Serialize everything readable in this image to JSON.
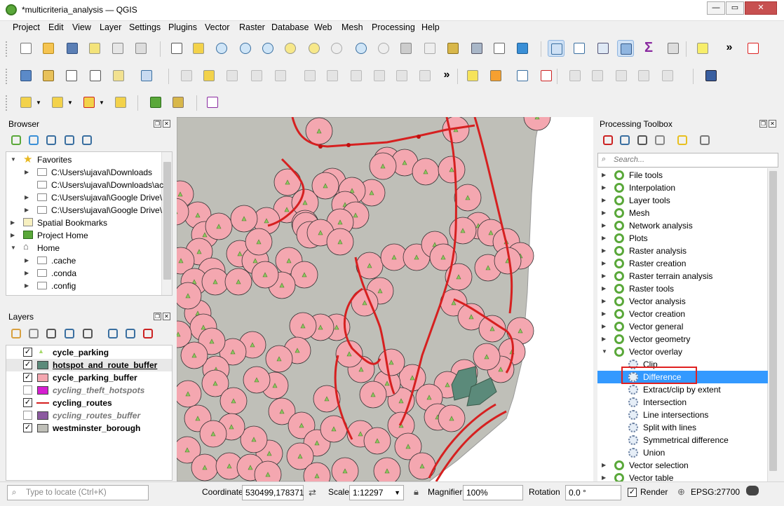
{
  "window": {
    "title": "*multicriteria_analysis — QGIS"
  },
  "menu": [
    "Project",
    "Edit",
    "View",
    "Layer",
    "Settings",
    "Plugins",
    "Vector",
    "Raster",
    "Database",
    "Web",
    "Mesh",
    "Processing",
    "Help"
  ],
  "browser": {
    "title": "Browser",
    "items": [
      {
        "label": "Favorites",
        "level": 0,
        "expanded": true,
        "icon": "star-icon"
      },
      {
        "label": "C:\\Users\\ujaval\\Downloads",
        "level": 1,
        "icon": "folder-icon"
      },
      {
        "label": "C:\\Users\\ujaval\\Downloads\\ac",
        "level": 1,
        "icon": "folder-icon"
      },
      {
        "label": "C:\\Users\\ujaval\\Google Drive\\",
        "level": 1,
        "icon": "folder-icon"
      },
      {
        "label": "C:\\Users\\ujaval\\Google Drive\\",
        "level": 1,
        "icon": "folder-icon"
      },
      {
        "label": "Spatial Bookmarks",
        "level": 0,
        "icon": "bookmark-icon"
      },
      {
        "label": "Project Home",
        "level": 0,
        "icon": "project-home-icon"
      },
      {
        "label": "Home",
        "level": 0,
        "expanded": true,
        "icon": "home-icon"
      },
      {
        "label": ".cache",
        "level": 1,
        "icon": "folder-icon"
      },
      {
        "label": ".conda",
        "level": 1,
        "icon": "folder-icon"
      },
      {
        "label": ".config",
        "level": 1,
        "icon": "folder-icon"
      }
    ]
  },
  "layers": {
    "title": "Layers",
    "items": [
      {
        "name": "cycle_parking",
        "checked": true,
        "color": "#a6d96a",
        "kind": "point"
      },
      {
        "name": "hotspot_and_route_buffer",
        "checked": true,
        "color": "#5b8a7a",
        "kind": "fill",
        "underline": true
      },
      {
        "name": "cycle_parking_buffer",
        "checked": true,
        "color": "#f4a7b0",
        "kind": "fill"
      },
      {
        "name": "cycling_theft_hotspots",
        "checked": false,
        "color": "#d61ed0",
        "kind": "fill"
      },
      {
        "name": "cycling_routes",
        "checked": true,
        "color": "#d62020",
        "kind": "line"
      },
      {
        "name": "cycling_routes_buffer",
        "checked": false,
        "color": "#8c5aa0",
        "kind": "fill"
      },
      {
        "name": "westminster_borough",
        "checked": true,
        "color": "#bfbfb8",
        "kind": "fill"
      }
    ]
  },
  "processing": {
    "title": "Processing Toolbox",
    "search_placeholder": "Search...",
    "groups": [
      {
        "label": "File tools"
      },
      {
        "label": "Interpolation"
      },
      {
        "label": "Layer tools"
      },
      {
        "label": "Mesh"
      },
      {
        "label": "Network analysis"
      },
      {
        "label": "Plots"
      },
      {
        "label": "Raster analysis"
      },
      {
        "label": "Raster creation"
      },
      {
        "label": "Raster terrain analysis"
      },
      {
        "label": "Raster tools"
      },
      {
        "label": "Vector analysis"
      },
      {
        "label": "Vector creation"
      },
      {
        "label": "Vector general"
      },
      {
        "label": "Vector geometry"
      },
      {
        "label": "Vector overlay",
        "expanded": true
      }
    ],
    "overlay_algorithms": [
      {
        "label": "Clip"
      },
      {
        "label": "Difference",
        "selected": true
      },
      {
        "label": "Extract/clip by extent"
      },
      {
        "label": "Intersection"
      },
      {
        "label": "Line intersections"
      },
      {
        "label": "Split with lines"
      },
      {
        "label": "Symmetrical difference"
      },
      {
        "label": "Union"
      }
    ],
    "groups_after": [
      {
        "label": "Vector selection"
      },
      {
        "label": "Vector table"
      }
    ]
  },
  "status": {
    "locator_placeholder": "Type to locate (Ctrl+K)",
    "coordinate_label": "Coordinate",
    "coordinate_value": "530499,178371",
    "scale_label": "Scale",
    "scale_value": "1:12297",
    "magnifier_label": "Magnifier",
    "magnifier_value": "100%",
    "rotation_label": "Rotation",
    "rotation_value": "0.0 °",
    "render_label": "Render",
    "render_checked": true,
    "crs_label": "EPSG:27700"
  },
  "colors": {
    "accent": "#3399ff",
    "selection_outline": "#e02020",
    "borough_fill": "#bfbfb8",
    "buffer_fill": "#f4a7b0",
    "route_line": "#d62020",
    "hotspot_fill": "#5b8a7a"
  }
}
